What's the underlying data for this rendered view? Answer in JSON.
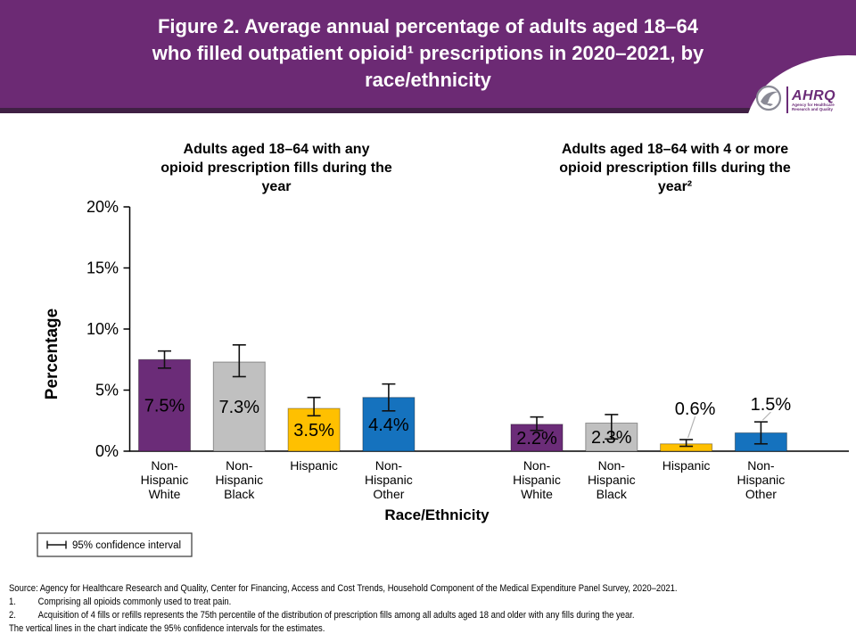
{
  "header": {
    "title_lines": [
      "Figure 2. Average annual percentage of adults aged 18–64",
      "who filled outpatient opioid¹ prescriptions in 2020–2021, by",
      "race/ethnicity"
    ],
    "logo": {
      "org": "AHRQ",
      "tagline1": "Agency for Healthcare",
      "tagline2": "Research and Quality"
    }
  },
  "chart_data": {
    "type": "bar",
    "title": "Figure 2. Average annual percentage of adults aged 18–64 who filled outpatient opioid¹ prescriptions in 2020–2021, by race/ethnicity",
    "xlabel": "Race/Ethnicity",
    "ylabel": "Percentage",
    "ylim": [
      0,
      20
    ],
    "grid": false,
    "yticks": [
      {
        "value": 0,
        "label": "0%"
      },
      {
        "value": 5,
        "label": "5%"
      },
      {
        "value": 10,
        "label": "10%"
      },
      {
        "value": 15,
        "label": "15%"
      },
      {
        "value": 20,
        "label": "20%"
      }
    ],
    "legend": {
      "label": "95% confidence interval",
      "position": "bottom-left"
    },
    "error_bars": "95% confidence interval",
    "groups": [
      {
        "title_lines": [
          "Adults aged 18–64 with any",
          "opioid prescription fills during the",
          "year"
        ],
        "bars": [
          {
            "category": "Non-\nHispanic\nWhite",
            "value": 7.5,
            "label": "7.5%",
            "ci_low": 6.8,
            "ci_high": 8.2,
            "color": "#6B2C78",
            "label_color": "#ffffff",
            "label_pos": "inside"
          },
          {
            "category": "Non-\nHispanic\nBlack",
            "value": 7.3,
            "label": "7.3%",
            "ci_low": 6.1,
            "ci_high": 8.7,
            "color": "#C0C0C0",
            "label_color": "#000000",
            "label_pos": "inside"
          },
          {
            "category": "Hispanic",
            "value": 3.5,
            "label": "3.5%",
            "ci_low": 2.9,
            "ci_high": 4.4,
            "color": "#FFC000",
            "label_color": "#000000",
            "label_pos": "inside"
          },
          {
            "category": "Non-\nHispanic\nOther",
            "value": 4.4,
            "label": "4.4%",
            "ci_low": 3.3,
            "ci_high": 5.5,
            "color": "#1572BE",
            "label_color": "#000000",
            "label_pos": "inside"
          }
        ]
      },
      {
        "title_lines": [
          "Adults aged 18–64 with 4 or more",
          "opioid prescription fills during the",
          "year²"
        ],
        "bars": [
          {
            "category": "Non-\nHispanic\nWhite",
            "value": 2.2,
            "label": "2.2%",
            "ci_low": 1.7,
            "ci_high": 2.8,
            "color": "#6B2C78",
            "label_color": "#ffffff",
            "label_pos": "inside"
          },
          {
            "category": "Non-\nHispanic\nBlack",
            "value": 2.3,
            "label": "2.3%",
            "ci_low": 1.0,
            "ci_high": 3.0,
            "color": "#C0C0C0",
            "label_color": "#000000",
            "label_pos": "inside"
          },
          {
            "category": "Hispanic",
            "value": 0.6,
            "label": "0.6%",
            "ci_low": 0.4,
            "ci_high": 0.95,
            "color": "#FFC000",
            "label_color": "#000000",
            "label_pos": "callout",
            "label_offset": {
              "dx": 10,
              "dy": -35
            }
          },
          {
            "category": "Non-\nHispanic\nOther",
            "value": 1.5,
            "label": "1.5%",
            "ci_low": 0.6,
            "ci_high": 2.4,
            "color": "#1572BE",
            "label_color": "#000000",
            "label_pos": "callout",
            "label_offset": {
              "dx": 11,
              "dy": -20
            }
          }
        ]
      }
    ]
  },
  "footer": {
    "source": "Source: Agency for Healthcare Research and Quality, Center for Financing, Access and Cost Trends, Household Component of the Medical Expenditure Panel Survey, 2020–2021.",
    "notes": [
      {
        "num": "1.",
        "text": "Comprising all opioids commonly used to treat pain."
      },
      {
        "num": "2.",
        "text": "Acquisition of 4 fills or refills represents the 75th percentile of the distribution of prescription fills among all adults aged 18 and older with any fills during the year."
      }
    ],
    "ci_note": "The vertical lines in the chart indicate the 95% confidence intervals for the estimates."
  }
}
